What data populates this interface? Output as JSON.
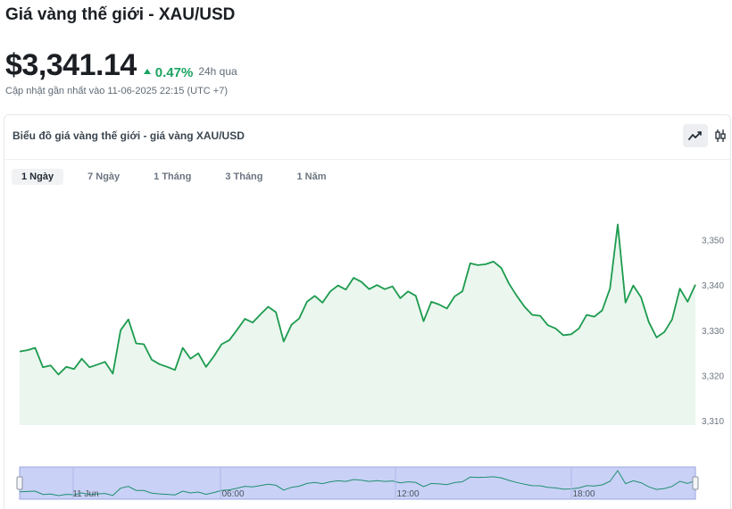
{
  "header": {
    "title": "Giá vàng thế giới - XAU/USD",
    "price": "$3,341.14",
    "change": "0.47%",
    "period": "24h qua",
    "updated": "Cập nhật gần nhất vào 11-06-2025 22:15 (UTC +7)"
  },
  "card": {
    "title": "Biểu đồ giá vàng thế giới - giá vàng XAU/USD",
    "tools": [
      "line-chart-icon",
      "candlestick-icon"
    ],
    "active_tool": "line-chart-icon"
  },
  "ranges": {
    "items": [
      "1 Ngày",
      "7 Ngày",
      "1 Tháng",
      "3 Tháng",
      "1 Năm"
    ],
    "active": 0
  },
  "colors": {
    "line": "#1c9b4e",
    "fill": "#eaf6ee",
    "navigator_bg": "#c9d1f6",
    "navigator_line": "#1f8f70",
    "up": "#1aa361"
  },
  "chart_data": {
    "type": "area",
    "title": "",
    "xlabel": "",
    "ylabel": "",
    "ylim": [
      3308,
      3356
    ],
    "yticks": [
      3310,
      3320,
      3330,
      3340,
      3350
    ],
    "ytick_labels": [
      "3,310",
      "3,320",
      "3,330",
      "3,340",
      "3,350"
    ],
    "grid": false,
    "series": [
      {
        "values": [
          3325.3,
          3325.6,
          3326.1,
          3321.8,
          3322.2,
          3320.2,
          3321.9,
          3321.4,
          3323.7,
          3321.8,
          3322.4,
          3323.0,
          3320.4,
          3330.0,
          3332.4,
          3327.1,
          3326.9,
          3323.5,
          3322.5,
          3321.9,
          3321.2,
          3326.1,
          3323.7,
          3324.9,
          3321.9,
          3324.2,
          3326.9,
          3327.8,
          3330.1,
          3332.5,
          3331.7,
          3333.5,
          3335.2,
          3334.0,
          3327.5,
          3331.2,
          3332.6,
          3336.3,
          3337.6,
          3336.1,
          3338.6,
          3339.9,
          3339.0,
          3341.6,
          3340.7,
          3339.1,
          3340.0,
          3339.1,
          3339.7,
          3337.1,
          3338.6,
          3337.6,
          3332.0,
          3336.3,
          3335.7,
          3334.8,
          3337.5,
          3338.6,
          3344.8,
          3344.4,
          3344.6,
          3345.2,
          3343.8,
          3340.3,
          3337.6,
          3335.2,
          3333.4,
          3333.2,
          3331.1,
          3330.4,
          3328.9,
          3329.1,
          3330.4,
          3333.4,
          3333.0,
          3334.4,
          3339.2,
          3353.4,
          3336.1,
          3339.9,
          3337.3,
          3331.8,
          3328.4,
          3329.6,
          3332.4,
          3339.2,
          3336.3,
          3340.1
        ]
      }
    ],
    "navigator": {
      "labels": [
        "11 Jun",
        "06:00",
        "12:00",
        "18:00"
      ]
    }
  }
}
